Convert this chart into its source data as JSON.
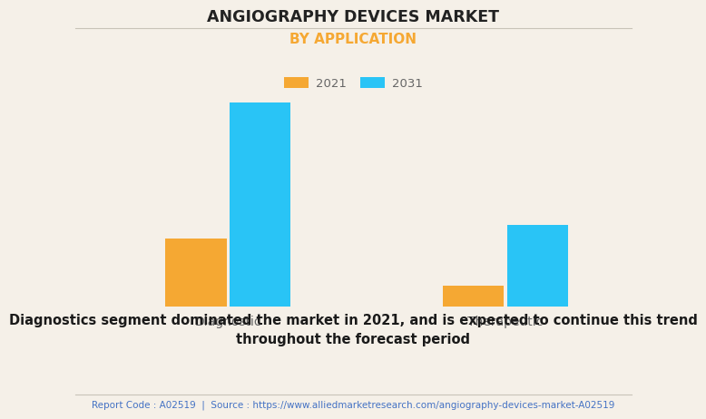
{
  "title": "ANGIOGRAPHY DEVICES MARKET",
  "subtitle": "BY APPLICATION",
  "categories": [
    "Diagnostic",
    "Therapeutic"
  ],
  "series": [
    {
      "label": "2021",
      "values": [
        3.2,
        1.0
      ],
      "color": "#F5A833"
    },
    {
      "label": "2031",
      "values": [
        9.5,
        3.8
      ],
      "color": "#29C4F6"
    }
  ],
  "background_color": "#F5F0E8",
  "grid_color": "#D8D3C8",
  "title_fontsize": 12.5,
  "subtitle_fontsize": 11,
  "subtitle_color": "#F5A833",
  "tick_label_fontsize": 10,
  "legend_fontsize": 9.5,
  "bar_width": 0.22,
  "caption_text": "Diagnostics segment dominated the market in 2021, and is expected to continue this trend\nthroughout the forecast period",
  "footer_text": "Report Code : A02519  |  Source : https://www.alliedmarketresearch.com/angiography-devices-market-A02519",
  "caption_fontsize": 10.5,
  "footer_fontsize": 7.5,
  "footer_color": "#4472C4"
}
